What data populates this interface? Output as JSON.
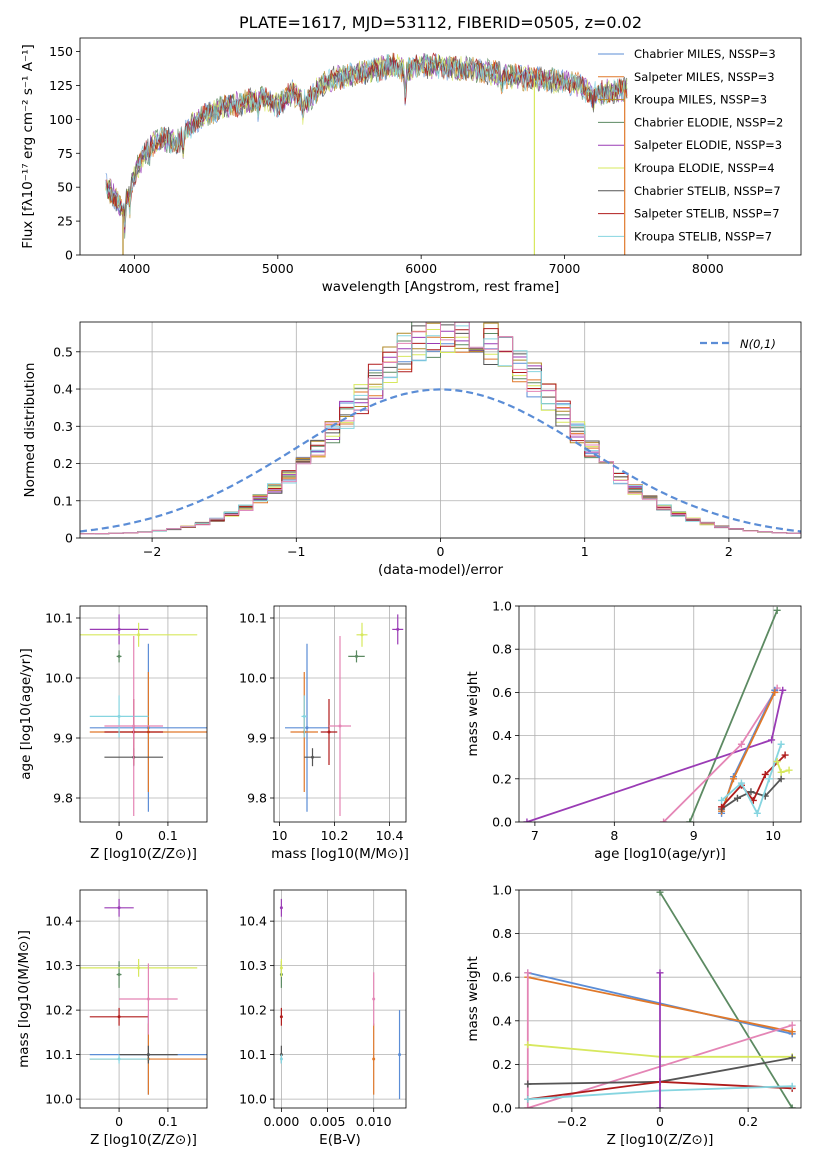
{
  "colors": {
    "c1": "#5b8dd6",
    "c2": "#e0782a",
    "c3": "#b08a28",
    "c4": "#5c8a62",
    "c5": "#9a3bb5",
    "c6": "#d7e85e",
    "c7": "#555555",
    "c8": "#b01c1c",
    "c9": "#86d5e0",
    "c10": "#e485b5",
    "grid": "#b0b0b0",
    "normal": "#5b8dd6"
  },
  "chart_data": [
    {
      "id": "spectrum",
      "type": "line",
      "title": "PLATE=1617, MJD=53112, FIBERID=0505, z=0.02",
      "xlabel": "wavelength [Angstrom, rest frame]",
      "ylabel": "Flux [fλ10⁻¹⁷ erg cm⁻² s⁻¹ A⁻¹]",
      "xlim": [
        3620,
        8650
      ],
      "ylim": [
        0,
        160
      ],
      "xticks": [
        4000,
        5000,
        6000,
        7000,
        8000
      ],
      "yticks": [
        0,
        25,
        50,
        75,
        100,
        125,
        150
      ],
      "grid": false,
      "legend": "upper right",
      "continuum": [
        [
          3800,
          52
        ],
        [
          3860,
          42
        ],
        [
          3920,
          34
        ],
        [
          4000,
          60
        ],
        [
          4100,
          80
        ],
        [
          4200,
          86
        ],
        [
          4300,
          83
        ],
        [
          4400,
          96
        ],
        [
          4500,
          104
        ],
        [
          4600,
          108
        ],
        [
          4700,
          111
        ],
        [
          4800,
          113
        ],
        [
          4900,
          116
        ],
        [
          5000,
          110
        ],
        [
          5100,
          120
        ],
        [
          5200,
          112
        ],
        [
          5300,
          125
        ],
        [
          5400,
          130
        ],
        [
          5500,
          133
        ],
        [
          5600,
          135
        ],
        [
          5700,
          137
        ],
        [
          5800,
          140
        ],
        [
          5900,
          136
        ],
        [
          6000,
          140
        ],
        [
          6100,
          139
        ],
        [
          6200,
          138
        ],
        [
          6300,
          138
        ],
        [
          6400,
          136
        ],
        [
          6500,
          134
        ],
        [
          6600,
          132
        ],
        [
          6700,
          131
        ],
        [
          6800,
          130
        ],
        [
          6900,
          129
        ],
        [
          7000,
          128
        ],
        [
          7100,
          126
        ],
        [
          7200,
          118
        ],
        [
          7300,
          121
        ],
        [
          7400,
          122
        ]
      ],
      "series": [
        {
          "name": "Chabrier MILES, N_SSP=3",
          "color": "c1"
        },
        {
          "name": "Salpeter MILES, N_SSP=3",
          "color": "c2"
        },
        {
          "name": "Kroupa MILES, N_SSP=3",
          "color": "c3"
        },
        {
          "name": "Chabrier ELODIE, N_SSP=2",
          "color": "c4"
        },
        {
          "name": "Salpeter ELODIE, N_SSP=3",
          "color": "c5"
        },
        {
          "name": "Kroupa ELODIE, N_SSP=4",
          "color": "c6"
        },
        {
          "name": "Chabrier STELIB, N_SSP=7",
          "color": "c7"
        },
        {
          "name": "Salpeter STELIB, N_SSP=7",
          "color": "c8"
        },
        {
          "name": "Kroupa STELIB, N_SSP=7",
          "color": "c9"
        }
      ],
      "drops": [
        [
          3920,
          "c3"
        ],
        [
          6790,
          "c6"
        ],
        [
          7420,
          "c2"
        ]
      ]
    },
    {
      "id": "residuals",
      "type": "histogram",
      "xlabel": "(data-model)/error",
      "ylabel": "Normed distribution",
      "xlim": [
        -2.5,
        2.5
      ],
      "ylim": [
        0,
        0.58
      ],
      "xticks": [
        -2,
        -1,
        0,
        1,
        2
      ],
      "yticks": [
        0.0,
        0.1,
        0.2,
        0.3,
        0.4,
        0.5
      ],
      "grid": true,
      "legend": "upper right",
      "legend_label": "N(0,1)",
      "bin_width": 0.1,
      "histogram_colors": [
        "c1",
        "c2",
        "c3",
        "c4",
        "c5",
        "c6",
        "c7",
        "c8",
        "c9",
        "c10"
      ]
    },
    {
      "id": "age_vs_Z",
      "type": "scatter",
      "xlabel": "Z [log10(Z/Z⊙)]",
      "ylabel": "age [log10(age/yr)]",
      "xlim": [
        -0.08,
        0.18
      ],
      "ylim": [
        9.76,
        10.12
      ],
      "xticks": [
        0.0,
        0.1
      ],
      "yticks": [
        9.8,
        9.9,
        10.0,
        10.1
      ],
      "grid": true,
      "points": [
        {
          "c": "c1",
          "x": 0.06,
          "y": 9.917,
          "xe": 0.12,
          "ye": 0.14
        },
        {
          "c": "c2",
          "x": 0.06,
          "y": 9.91,
          "xe": 0.12,
          "ye": 0.1
        },
        {
          "c": "c4",
          "x": 0.0,
          "y": 10.036,
          "xe": 0.005,
          "ye": 0.01
        },
        {
          "c": "c5",
          "x": 0.0,
          "y": 10.081,
          "xe": 0.06,
          "ye": 0.025
        },
        {
          "c": "c6",
          "x": 0.04,
          "y": 10.072,
          "xe": 0.12,
          "ye": 0.02
        },
        {
          "c": "c7",
          "x": 0.03,
          "y": 9.868,
          "xe": 0.06,
          "ye": 0.015
        },
        {
          "c": "c8",
          "x": 0.03,
          "y": 9.91,
          "xe": 0.06,
          "ye": 0.055
        },
        {
          "c": "c9",
          "x": 0.0,
          "y": 9.936,
          "xe": 0.06,
          "ye": 0.035
        },
        {
          "c": "c10",
          "x": 0.03,
          "y": 9.92,
          "xe": 0.06,
          "ye": 0.15
        }
      ]
    },
    {
      "id": "age_vs_mass",
      "type": "scatter",
      "xlabel": "mass [log10(M/M⊙)]",
      "ylabel": "",
      "xlim": [
        9.98,
        10.46
      ],
      "ylim": [
        9.76,
        10.12
      ],
      "xticks": [
        10.0,
        10.2,
        10.4
      ],
      "yticks": [
        9.8,
        9.9,
        10.0,
        10.1
      ],
      "grid": true,
      "points": [
        {
          "c": "c1",
          "x": 10.1,
          "y": 9.917,
          "xe": 0.08,
          "ye": 0.14
        },
        {
          "c": "c2",
          "x": 10.09,
          "y": 9.91,
          "xe": 0.05,
          "ye": 0.1
        },
        {
          "c": "c4",
          "x": 10.28,
          "y": 10.036,
          "xe": 0.03,
          "ye": 0.01
        },
        {
          "c": "c5",
          "x": 10.43,
          "y": 10.081,
          "xe": 0.02,
          "ye": 0.025
        },
        {
          "c": "c6",
          "x": 10.3,
          "y": 10.072,
          "xe": 0.02,
          "ye": 0.02
        },
        {
          "c": "c7",
          "x": 10.12,
          "y": 9.868,
          "xe": 0.03,
          "ye": 0.015
        },
        {
          "c": "c8",
          "x": 10.18,
          "y": 9.91,
          "xe": 0.03,
          "ye": 0.055
        },
        {
          "c": "c9",
          "x": 10.09,
          "y": 9.936,
          "xe": 0.01,
          "ye": 0.035
        },
        {
          "c": "c10",
          "x": 10.22,
          "y": 9.92,
          "xe": 0.04,
          "ye": 0.15
        }
      ]
    },
    {
      "id": "weight_vs_age",
      "type": "line",
      "xlabel": "age [log10(age/yr)]",
      "ylabel": "mass weight",
      "xlim": [
        6.8,
        10.35
      ],
      "ylim": [
        0,
        1
      ],
      "xticks": [
        7,
        8,
        9,
        10
      ],
      "yticks": [
        0.0,
        0.2,
        0.4,
        0.6,
        0.8,
        1.0
      ],
      "grid": true,
      "series": [
        {
          "c": "c4",
          "pts": [
            [
              8.95,
              0.0
            ],
            [
              10.05,
              0.98
            ]
          ]
        },
        {
          "c": "c5",
          "pts": [
            [
              6.9,
              0.0
            ],
            [
              9.98,
              0.38
            ],
            [
              10.12,
              0.61
            ]
          ]
        },
        {
          "c": "c10",
          "pts": [
            [
              8.62,
              0.0
            ],
            [
              9.6,
              0.36
            ],
            [
              10.05,
              0.62
            ]
          ]
        },
        {
          "c": "c1",
          "pts": [
            [
              9.35,
              0.04
            ],
            [
              9.5,
              0.21
            ],
            [
              10.02,
              0.61
            ]
          ]
        },
        {
          "c": "c2",
          "pts": [
            [
              9.35,
              0.05
            ],
            [
              9.5,
              0.2
            ],
            [
              10.02,
              0.6
            ]
          ]
        },
        {
          "c": "c7",
          "pts": [
            [
              9.35,
              0.06
            ],
            [
              9.55,
              0.11
            ],
            [
              9.72,
              0.14
            ],
            [
              9.9,
              0.12
            ],
            [
              10.1,
              0.2
            ]
          ]
        },
        {
          "c": "c8",
          "pts": [
            [
              9.35,
              0.07
            ],
            [
              9.6,
              0.17
            ],
            [
              9.75,
              0.1
            ],
            [
              9.9,
              0.22
            ],
            [
              10.15,
              0.31
            ]
          ]
        },
        {
          "c": "c9",
          "pts": [
            [
              9.35,
              0.1
            ],
            [
              9.6,
              0.18
            ],
            [
              9.8,
              0.04
            ],
            [
              9.95,
              0.2
            ],
            [
              10.1,
              0.36
            ]
          ]
        },
        {
          "c": "c6",
          "pts": [
            [
              10.05,
              0.28
            ],
            [
              10.1,
              0.23
            ],
            [
              10.2,
              0.24
            ]
          ]
        }
      ]
    },
    {
      "id": "mass_vs_Z",
      "type": "scatter",
      "xlabel": "Z [log10(Z/Z⊙)]",
      "ylabel": "mass [log10(M/M⊙)]",
      "xlim": [
        -0.08,
        0.18
      ],
      "ylim": [
        9.98,
        10.47
      ],
      "xticks": [
        0.0,
        0.1
      ],
      "yticks": [
        10.0,
        10.1,
        10.2,
        10.3,
        10.4
      ],
      "grid": true,
      "points": [
        {
          "c": "c1",
          "x": 0.06,
          "y": 10.1,
          "xe": 0.12,
          "ye": 0.09
        },
        {
          "c": "c2",
          "x": 0.06,
          "y": 10.09,
          "xe": 0.12,
          "ye": 0.08
        },
        {
          "c": "c4",
          "x": 0.0,
          "y": 10.28,
          "xe": 0.005,
          "ye": 0.03
        },
        {
          "c": "c5",
          "x": 0.0,
          "y": 10.43,
          "xe": 0.03,
          "ye": 0.02
        },
        {
          "c": "c6",
          "x": 0.04,
          "y": 10.295,
          "xe": 0.12,
          "ye": 0.02
        },
        {
          "c": "c7",
          "x": 0.06,
          "y": 10.1,
          "xe": 0.06,
          "ye": 0.02
        },
        {
          "c": "c8",
          "x": 0.0,
          "y": 10.185,
          "xe": 0.06,
          "ye": 0.02
        },
        {
          "c": "c9",
          "x": 0.0,
          "y": 10.09,
          "xe": 0.06,
          "ye": 0.01
        },
        {
          "c": "c10",
          "x": 0.06,
          "y": 10.225,
          "xe": 0.06,
          "ye": 0.08
        }
      ]
    },
    {
      "id": "mass_vs_ebv",
      "type": "scatter",
      "xlabel": "E(B-V)",
      "ylabel": "",
      "xlim": [
        -0.0008,
        0.0135
      ],
      "ylim": [
        9.98,
        10.47
      ],
      "xticks": [
        0.0,
        0.005,
        0.01
      ],
      "xtick_labels": [
        "0.000",
        "0.005",
        "0.010"
      ],
      "yticks": [
        10.0,
        10.1,
        10.2,
        10.3,
        10.4
      ],
      "grid": true,
      "points": [
        {
          "c": "c1",
          "x": 0.0128,
          "y": 10.1,
          "xe": 0,
          "ye": 0.1
        },
        {
          "c": "c2",
          "x": 0.01,
          "y": 10.09,
          "xe": 0,
          "ye": 0.08
        },
        {
          "c": "c4",
          "x": 0.0,
          "y": 10.28,
          "xe": 0,
          "ye": 0.03
        },
        {
          "c": "c5",
          "x": 0.0,
          "y": 10.43,
          "xe": 0,
          "ye": 0.02
        },
        {
          "c": "c6",
          "x": 0.0,
          "y": 10.295,
          "xe": 0,
          "ye": 0.02
        },
        {
          "c": "c7",
          "x": 0.0,
          "y": 10.1,
          "xe": 0,
          "ye": 0.02
        },
        {
          "c": "c8",
          "x": 0.0,
          "y": 10.185,
          "xe": 0,
          "ye": 0.02
        },
        {
          "c": "c9",
          "x": 0.0,
          "y": 10.09,
          "xe": 0,
          "ye": 0.01
        },
        {
          "c": "c10",
          "x": 0.01,
          "y": 10.225,
          "xe": 0,
          "ye": 0.06
        }
      ]
    },
    {
      "id": "weight_vs_Z",
      "type": "line",
      "xlabel": "Z [log10(Z/Z⊙)]",
      "ylabel": "mass weight",
      "xlim": [
        -0.32,
        0.32
      ],
      "ylim": [
        0,
        1
      ],
      "xticks": [
        -0.2,
        0.0,
        0.2
      ],
      "yticks": [
        0.0,
        0.2,
        0.4,
        0.6,
        0.8,
        1.0
      ],
      "grid": true,
      "series": [
        {
          "c": "c4",
          "pts": [
            [
              0.0,
              0.99
            ],
            [
              0.3,
              0.0
            ]
          ]
        },
        {
          "c": "c1",
          "pts": [
            [
              -0.3,
              0.62
            ],
            [
              0.3,
              0.34
            ]
          ]
        },
        {
          "c": "c2",
          "pts": [
            [
              -0.3,
              0.6
            ],
            [
              0.3,
              0.35
            ]
          ]
        },
        {
          "c": "c10",
          "pts": [
            [
              -0.3,
              0.62
            ],
            [
              -0.3,
              0.0
            ],
            [
              0.3,
              0.38
            ]
          ]
        },
        {
          "c": "c6",
          "pts": [
            [
              -0.3,
              0.29
            ],
            [
              0.0,
              0.235
            ],
            [
              0.3,
              0.235
            ]
          ]
        },
        {
          "c": "c7",
          "pts": [
            [
              -0.3,
              0.11
            ],
            [
              0.0,
              0.12
            ],
            [
              0.3,
              0.23
            ]
          ]
        },
        {
          "c": "c8",
          "pts": [
            [
              -0.3,
              0.04
            ],
            [
              0.0,
              0.12
            ],
            [
              0.3,
              0.09
            ]
          ]
        },
        {
          "c": "c9",
          "pts": [
            [
              -0.3,
              0.04
            ],
            [
              0.0,
              0.08
            ],
            [
              0.3,
              0.1
            ]
          ]
        },
        {
          "c": "c5",
          "pts": [
            [
              0.0,
              0.0
            ],
            [
              0.0,
              0.62
            ]
          ]
        }
      ]
    }
  ]
}
